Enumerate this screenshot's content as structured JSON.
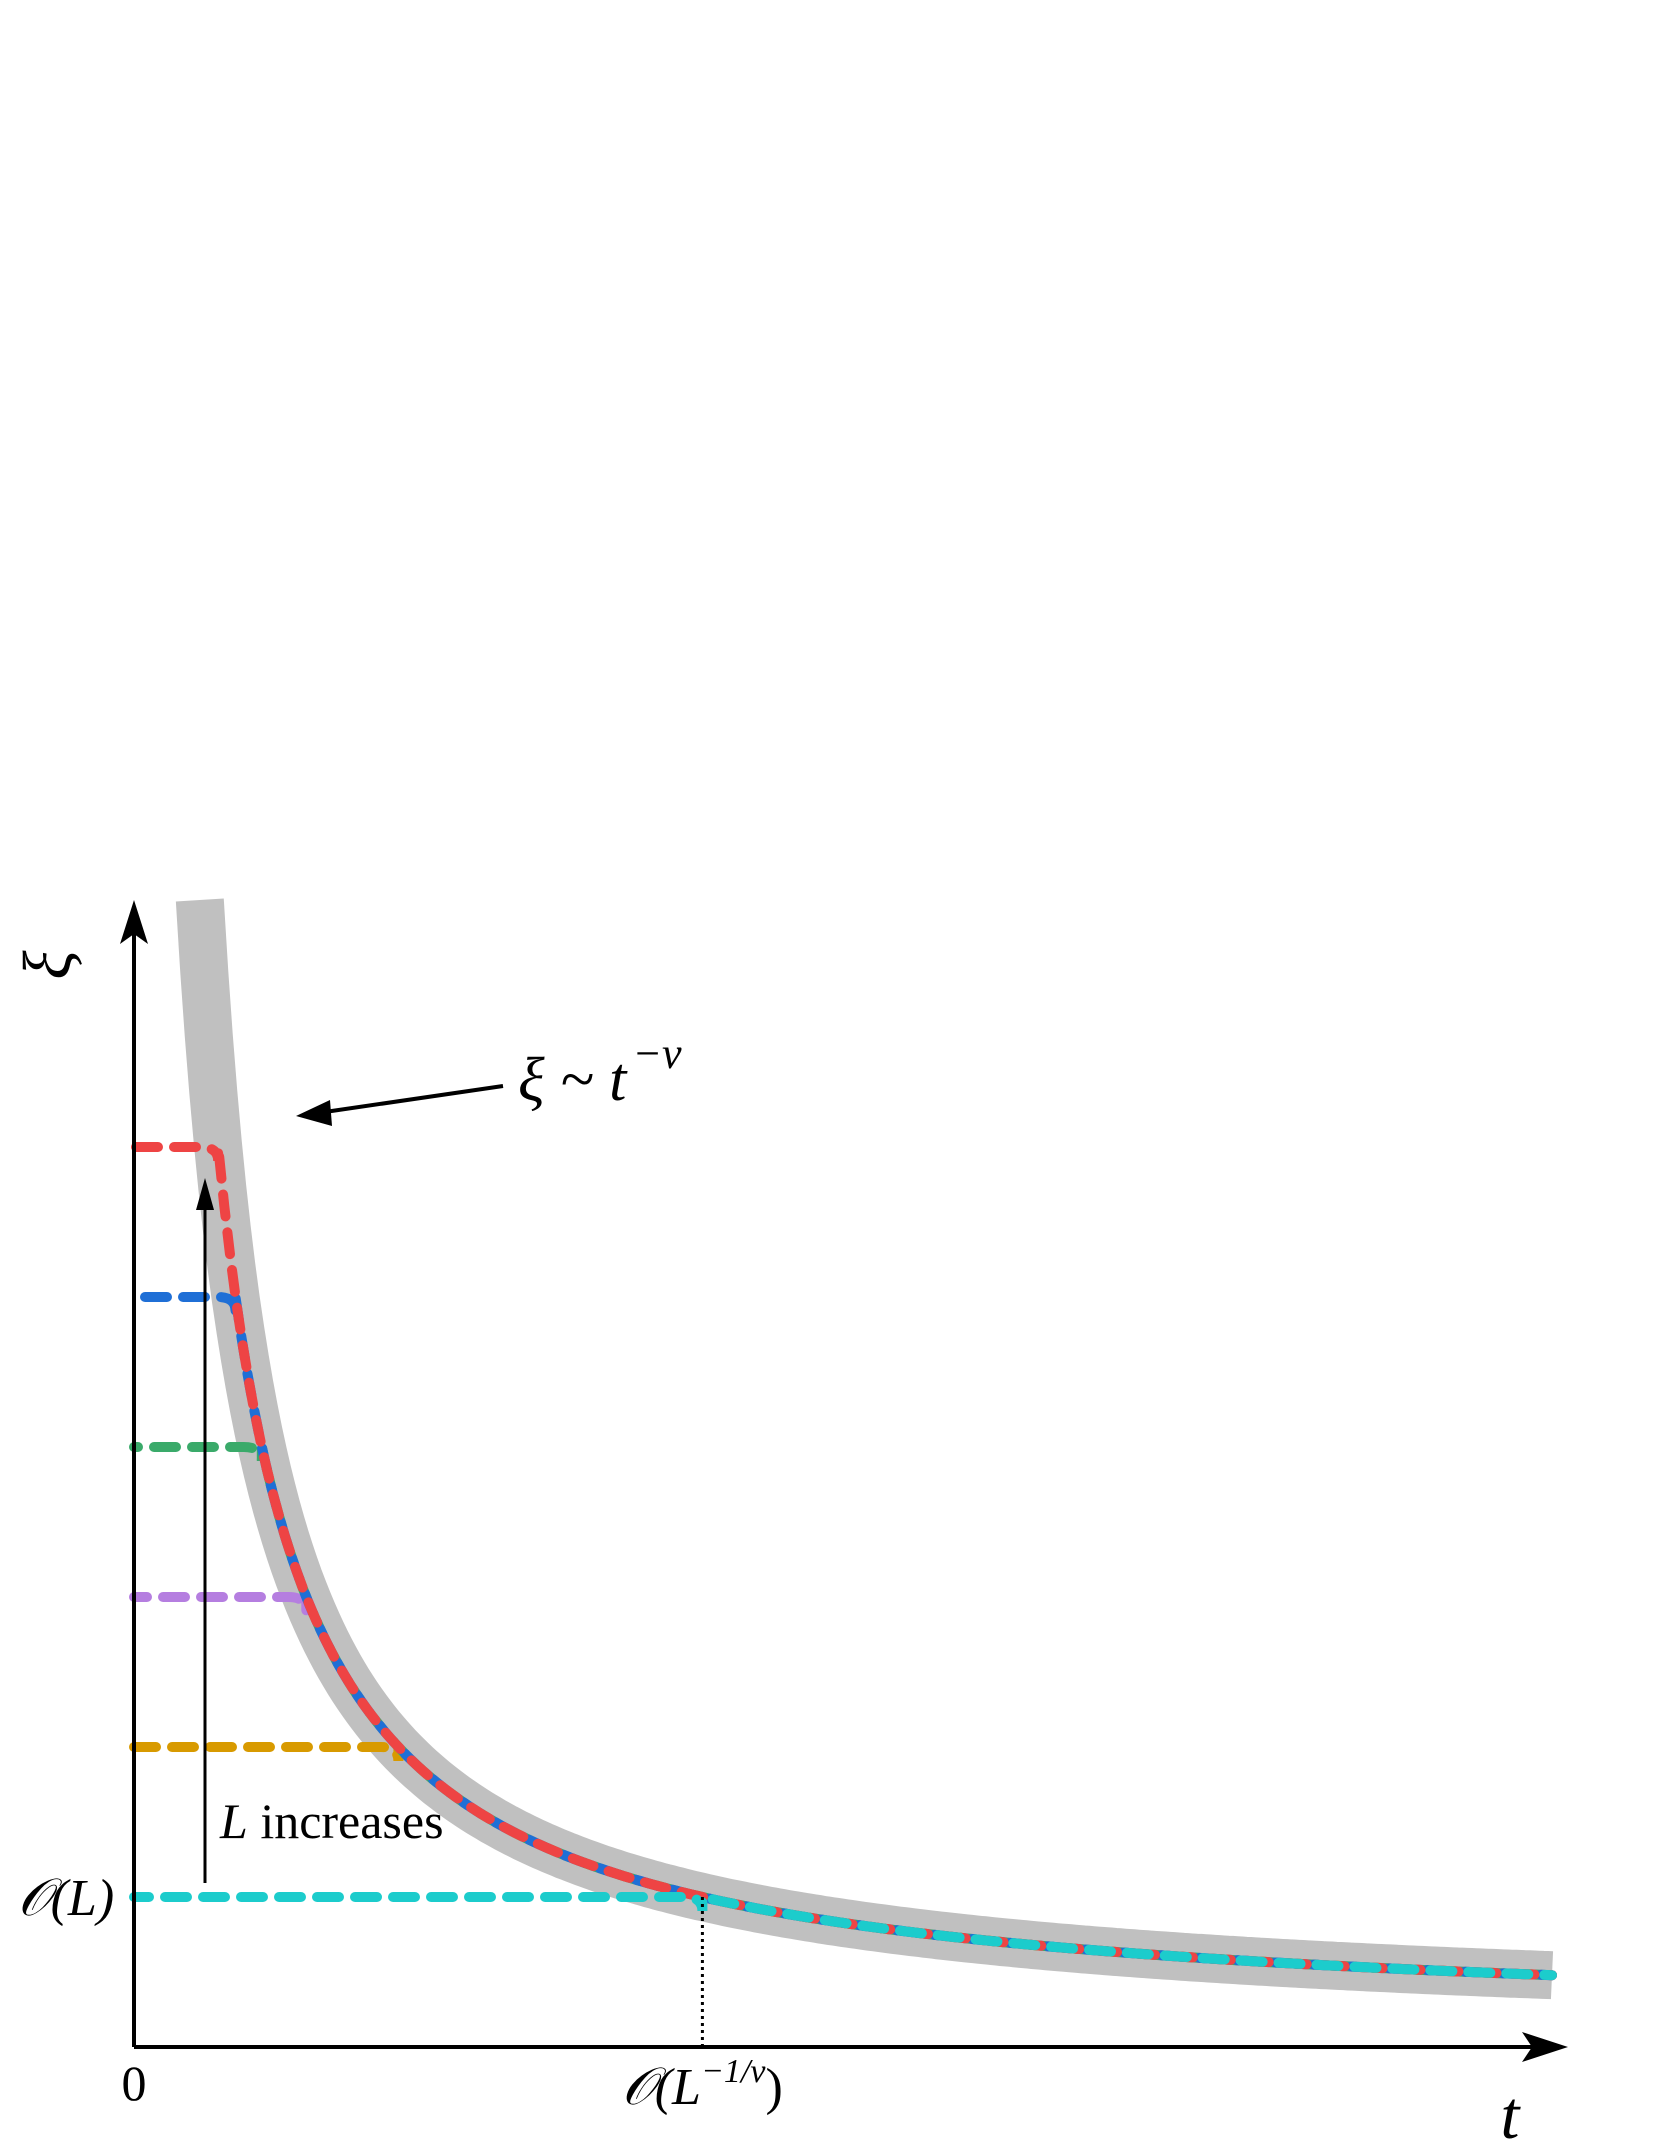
{
  "chart_data": {
    "type": "line",
    "xlabel": "t",
    "ylabel": "ξ",
    "x_ticks": [
      {
        "text": "0",
        "t": 0
      },
      {
        "text_main": "𝒪(L",
        "text_sup": "−1/ν",
        "text_close": ")",
        "t": 1.0
      }
    ],
    "y_ticks": [
      {
        "text": "𝒪(L)",
        "xi": 1
      }
    ],
    "xlim": [
      0,
      1.82
    ],
    "ylim": [
      0,
      10
    ],
    "power_law": {
      "label_main": "ξ ~ t",
      "label_sup": "−ν",
      "color": "#c0c0c0",
      "nu": 1.0,
      "amplitude": 1.0
    },
    "series": [
      {
        "color": "#d89a00",
        "xi_max": 2.0,
        "finite_size": true
      },
      {
        "color": "#b57ee0",
        "xi_max": 3.0,
        "finite_size": true
      },
      {
        "color": "#3aaa6a",
        "xi_max": 4.0,
        "finite_size": true
      },
      {
        "color": "#1f6fd6",
        "xi_max": 5.0,
        "finite_size": true
      },
      {
        "color": "#ee4444",
        "xi_max": 6.0,
        "finite_size": true
      },
      {
        "color": "#1ccccc",
        "xi_max": 1.0,
        "finite_size": true
      }
    ],
    "arrow_annotation": {
      "text_var": "L",
      "text_rest": " increases"
    },
    "grid": false,
    "legend": "none"
  }
}
